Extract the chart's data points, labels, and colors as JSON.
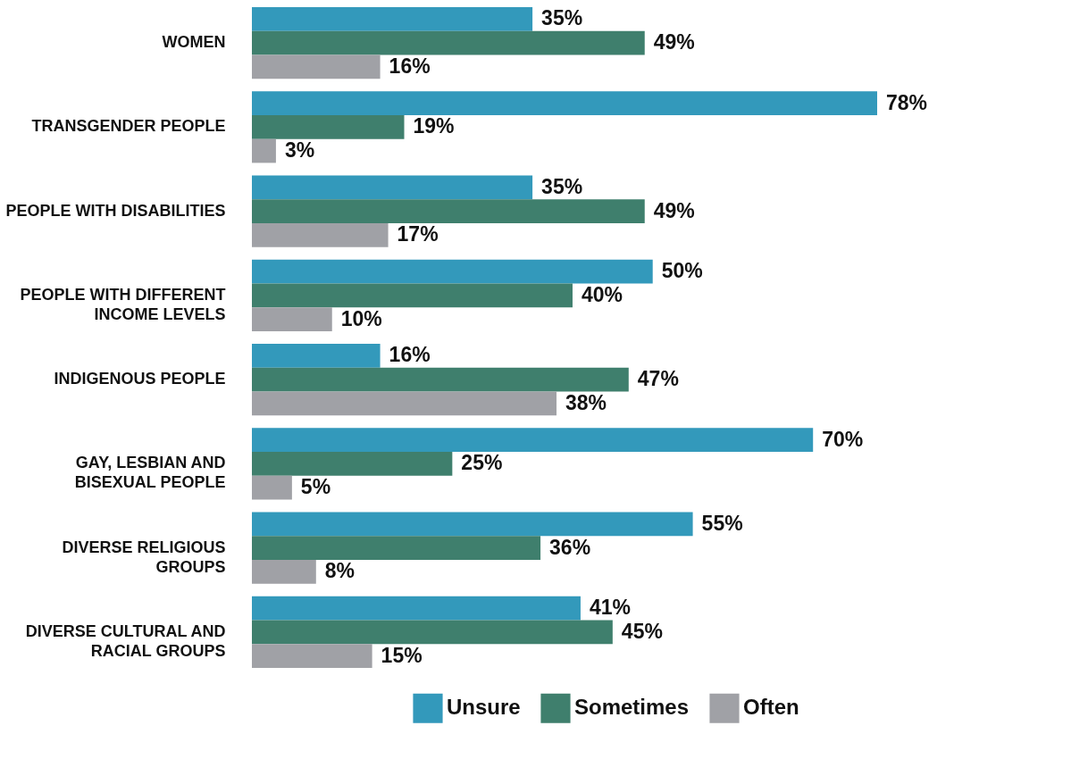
{
  "chart_data": {
    "type": "bar",
    "orientation": "horizontal",
    "categories": [
      "WOMEN",
      "TRANSGENDER PEOPLE",
      "PEOPLE WITH DISABILITIES",
      "PEOPLE WITH DIFFERENT\nINCOME LEVELS",
      "INDIGENOUS PEOPLE",
      "GAY, LESBIAN AND\nBISEXUAL PEOPLE",
      "DIVERSE RELIGIOUS\nGROUPS",
      "DIVERSE CULTURAL AND\nRACIAL GROUPS"
    ],
    "series": [
      {
        "name": "Unsure",
        "color": "#3399bb",
        "values": [
          35,
          78,
          35,
          50,
          16,
          70,
          55,
          41
        ],
        "value_labels": [
          "35%",
          "78%",
          "35%",
          "50%",
          "16%",
          "70%",
          "55%",
          "41%"
        ]
      },
      {
        "name": "Sometimes",
        "color": "#3f7f6d",
        "values": [
          49,
          19,
          49,
          40,
          47,
          25,
          36,
          45
        ],
        "value_labels": [
          "49%",
          "19%",
          "49%",
          "40%",
          "47%",
          "25%",
          "36%",
          "45%"
        ]
      },
      {
        "name": "Often",
        "color": "#a0a1a6",
        "values": [
          16,
          3,
          17,
          10,
          38,
          5,
          8,
          15
        ],
        "value_labels": [
          "16%",
          "3%",
          "17%",
          "10%",
          "38%",
          "5%",
          "8%",
          "15%"
        ]
      }
    ],
    "legend": "bottom right"
  }
}
